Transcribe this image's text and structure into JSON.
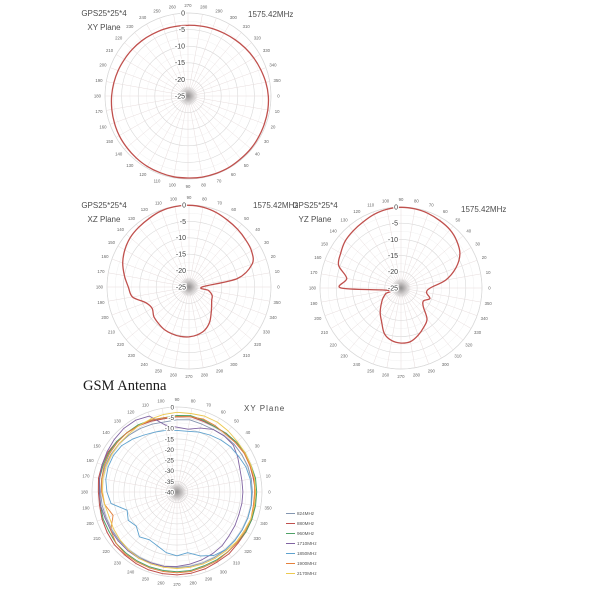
{
  "page": {
    "background": "#ffffff"
  },
  "gsm_section_title": "GSM Antenna",
  "styles": {
    "ring_major": "#d9d9d9",
    "ring_minor": "#ececec",
    "spoke": "#e7dcdc",
    "angle_label_color": "#666666",
    "radial_label_color": "#404040",
    "center_blob": "#8a8a8a"
  },
  "chart_data": [
    {
      "type": "line",
      "polar": true,
      "name": "GPS antenna radiation pattern XY plane",
      "label_left": [
        "GPS25*25*4",
        "XY Plane"
      ],
      "label_right": "1575.42MHz",
      "angle_axis": {
        "start": 0,
        "step": 10,
        "count": 36,
        "direction": "cw",
        "zero_at": "right",
        "top_label": 270
      },
      "r_axis": {
        "ticks": [
          0,
          -5,
          -10,
          -15,
          -20,
          -25
        ],
        "min": -25,
        "minor_step": 2.5,
        "unit": "dB"
      },
      "smooth": true,
      "series": [
        {
          "name": "1575.42MHz",
          "color": "#C0504D",
          "width": 1.3,
          "values": [
            -0.8,
            -0.6,
            -0.5,
            -0.4,
            -0.3,
            -0.3,
            -0.2,
            -0.2,
            -0.2,
            -0.3,
            -0.3,
            -0.4,
            -0.5,
            -0.7,
            -0.9,
            -1.1,
            -1.4,
            -1.7,
            -2.0,
            -2.3,
            -2.6,
            -2.9,
            -3.1,
            -3.3,
            -3.5,
            -3.6,
            -3.7,
            -3.7,
            -3.6,
            -3.4,
            -3.2,
            -2.9,
            -2.5,
            -2.1,
            -1.7,
            -1.2
          ]
        }
      ]
    },
    {
      "type": "line",
      "polar": true,
      "name": "GPS antenna radiation pattern XZ plane",
      "label_left": [
        "GPS25*25*4",
        "XZ Plane"
      ],
      "label_right": "1575.42MHz",
      "angle_axis": {
        "start": 0,
        "step": 10,
        "count": 36,
        "direction": "ccw",
        "zero_at": "right",
        "top_label": 90
      },
      "r_axis": {
        "ticks": [
          0,
          -5,
          -10,
          -15,
          -20,
          -25
        ],
        "min": -25,
        "minor_step": 2.5,
        "unit": "dB"
      },
      "smooth": true,
      "series": [
        {
          "name": "1575.42MHz",
          "color": "#C0504D",
          "width": 1.3,
          "values": [
            -21,
            -10,
            -4.5,
            -3,
            -2.5,
            -2,
            -1.5,
            -0.8,
            -0.3,
            -0.1,
            -0.1,
            -0.3,
            -0.8,
            -1.2,
            -1.6,
            -2.4,
            -3.5,
            -5,
            -6.5,
            -7.5,
            -11,
            -12,
            -11,
            -10.5,
            -10,
            -9.8,
            -9.7,
            -9.8,
            -10.2,
            -11,
            -12.5,
            -14.5,
            -16,
            -17,
            -17.5,
            -19
          ]
        }
      ]
    },
    {
      "type": "line",
      "polar": true,
      "name": "GPS antenna radiation pattern YZ plane",
      "label_left": [
        "GPS25*25*4",
        "YZ Plane"
      ],
      "label_right": "1575.42MHz",
      "angle_axis": {
        "start": 0,
        "step": 10,
        "count": 36,
        "direction": "ccw",
        "zero_at": "right",
        "top_label": 90
      },
      "r_axis": {
        "ticks": [
          0,
          -5,
          -10,
          -15,
          -20,
          -25
        ],
        "min": -25,
        "minor_step": 2.5,
        "unit": "dB"
      },
      "smooth": true,
      "series": [
        {
          "name": "1575.42MHz",
          "color": "#C0504D",
          "width": 1.3,
          "values": [
            -16,
            -11,
            -7,
            -4,
            -2.5,
            -1.5,
            -1,
            -0.5,
            -0.2,
            -0.1,
            -0.3,
            -0.8,
            -1.5,
            -2,
            -2.5,
            -3.5,
            -4.5,
            -8,
            -6.5,
            -21,
            -20,
            -18.5,
            -17,
            -15,
            -13,
            -10,
            -8.5,
            -8,
            -8.2,
            -9.5,
            -11,
            -12.5,
            -16,
            -17,
            -15.5,
            -17
          ]
        }
      ]
    },
    {
      "type": "line",
      "polar": true,
      "name": "GSM antenna radiation pattern XY plane",
      "label_left": [],
      "label_right": "XY Plane",
      "angle_axis": {
        "start": 0,
        "step": 10,
        "count": 36,
        "direction": "ccw",
        "zero_at": "right",
        "top_label": 90
      },
      "r_axis": {
        "ticks": [
          0,
          -5,
          -10,
          -15,
          -20,
          -25,
          -30,
          -35,
          -40
        ],
        "min": -40,
        "minor_step": 2.5,
        "unit": "dB"
      },
      "smooth": false,
      "legend_position": "right",
      "series": [
        {
          "name": "824MHz",
          "color": "#8496B0",
          "width": 0.9,
          "values": [
            -4.5,
            -4.5,
            -4.5,
            -4.8,
            -5,
            -5.5,
            -6,
            -6,
            -5.5,
            -6,
            -6.5,
            -6,
            -5.5,
            -5,
            -4.5,
            -4.2,
            -4,
            -4,
            -4,
            -4.2,
            -4.5,
            -4.5,
            -4.5,
            -4.5,
            -4.5,
            -4.5,
            -4.5,
            -4.5,
            -4.5,
            -4.5,
            -4.5,
            -4.5,
            -4.5,
            -4.5,
            -4.5,
            -4.5
          ]
        },
        {
          "name": "880MHz",
          "color": "#C0504D",
          "width": 1.0,
          "values": [
            -3,
            -3.5,
            -3.5,
            -3.5,
            -4,
            -4,
            -4.5,
            -4.5,
            -4,
            -4.5,
            -5,
            -4.5,
            -4,
            -3.5,
            -3,
            -2.5,
            -2.5,
            -2.5,
            -3,
            -3,
            -2.5,
            -2,
            -1.5,
            -1.5,
            -1.2,
            -1,
            -1,
            -1,
            -1.2,
            -1.5,
            -2,
            -2,
            -2.5,
            -2.5,
            -2.5,
            -3
          ]
        },
        {
          "name": "960MHz",
          "color": "#4FA167",
          "width": 1.0,
          "values": [
            -2.5,
            -2.5,
            -3,
            -3,
            -3.5,
            -4,
            -4.5,
            -4,
            -3.5,
            -4,
            -4.5,
            -4,
            -3.5,
            -3.5,
            -3,
            -3,
            -3,
            -3,
            -3.5,
            -3.5,
            -3,
            -3,
            -2.5,
            -2.5,
            -2.5,
            -2.5,
            -2.5,
            -2.5,
            -2.5,
            -3,
            -3,
            -3,
            -3,
            -2.5,
            -2.5,
            -2.5
          ]
        },
        {
          "name": "1710MHz",
          "color": "#8064A2",
          "width": 0.9,
          "values": [
            -9,
            -9,
            -8.5,
            -7,
            -5.5,
            -5.5,
            -6,
            -8,
            -10,
            -9.5,
            -8,
            -2,
            -1,
            -1,
            -1.5,
            -2,
            -2.5,
            -3,
            -3.5,
            -3.5,
            -4,
            -4,
            -4,
            -4,
            -4,
            -4.5,
            -4.5,
            -5,
            -5.5,
            -6,
            -6.5,
            -7,
            -8,
            -8.5,
            -9,
            -9
          ]
        },
        {
          "name": "1850MHz",
          "color": "#5FA2CE",
          "width": 0.9,
          "values": [
            -5,
            -5,
            -5.5,
            -6.5,
            -7,
            -8,
            -9,
            -10,
            -11,
            -11,
            -10.5,
            -10,
            -9,
            -7.5,
            -6,
            -5.5,
            -5.5,
            -6,
            -7,
            -8.5,
            -15,
            -13.5,
            -15,
            -12.5,
            -14,
            -13,
            -11,
            -10,
            -11,
            -8,
            -5.5,
            -4.5,
            -4.5,
            -4.5,
            -4.5,
            -4.5
          ]
        },
        {
          "name": "1900MHz",
          "color": "#E5803B",
          "width": 0.9,
          "values": [
            -3.5,
            -3,
            -3.5,
            -3.5,
            -4,
            -4.5,
            -4,
            -3.5,
            -4,
            -4.5,
            -4.5,
            -4,
            -4,
            -3.5,
            -3.5,
            -3.5,
            -3.5,
            -4,
            -4.5,
            -5.5,
            -8,
            -4,
            -2.5,
            -2,
            -2,
            -2,
            -2,
            -2,
            -2,
            -2.5,
            -2.5,
            -3,
            -3,
            -3,
            -3,
            -3.5
          ]
        },
        {
          "name": "2170MHz",
          "color": "#EDC94F",
          "width": 0.9,
          "values": [
            -3,
            -3,
            -3,
            -3,
            -3,
            -2.5,
            -2,
            -2,
            -2.5,
            -2.5,
            -3,
            -3.5,
            -4,
            -4.5,
            -4.5,
            -4.5,
            -4.5,
            -4.5,
            -5,
            -5.5,
            -6,
            -5.5,
            -5,
            -4.5,
            -4,
            -4,
            -4,
            -4,
            -4,
            -4,
            -4,
            -4,
            -3.5,
            -3.5,
            -3,
            -3
          ]
        }
      ]
    }
  ]
}
